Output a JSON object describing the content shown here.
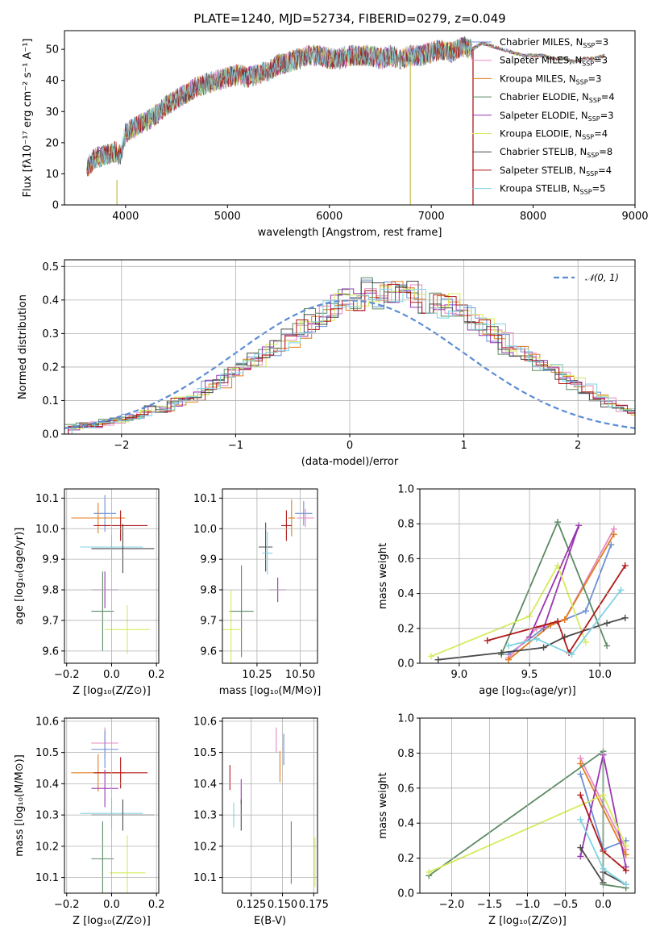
{
  "title": "PLATE=1240, MJD=52734, FIBERID=0279, z=0.049",
  "chart_data": [
    {
      "id": "spectrum",
      "type": "line",
      "xlabel": "wavelength [Angstrom, rest frame]",
      "ylabel": "Flux [fλ10⁻¹⁷ erg cm⁻² s⁻¹ A⁻¹]",
      "xlim": [
        3400,
        9000
      ],
      "ylim": [
        0,
        56
      ],
      "xticks": [
        "4000",
        "5000",
        "6000",
        "7000",
        "8000",
        "9000"
      ],
      "yticks": [
        "0",
        "10",
        "20",
        "30",
        "40",
        "50"
      ],
      "legend_position": "top-right",
      "continuum": {
        "x": [
          3620,
          3700,
          3800,
          3900,
          3950,
          4000,
          4100,
          4200,
          4300,
          4400,
          4500,
          4600,
          4700,
          4800,
          4900,
          5000,
          5100,
          5200,
          5300,
          5400,
          5500,
          5600,
          5700,
          5800,
          5900,
          6000,
          6100,
          6200,
          6300,
          6400,
          6500,
          6600,
          6700,
          6800,
          6900,
          7000,
          7100,
          7200,
          7300,
          7400
        ],
        "y": [
          12,
          15,
          16,
          17,
          16,
          23,
          25,
          27,
          29,
          32,
          34,
          36,
          38,
          39,
          40,
          41,
          42,
          41,
          42,
          43,
          45,
          46,
          47,
          48,
          48,
          47,
          47,
          48,
          48,
          48,
          47,
          48,
          47,
          48,
          48,
          49,
          50,
          49,
          51,
          50
        ]
      },
      "models_extension": {
        "x": [
          7400,
          7500,
          7600,
          7700,
          7800,
          7900,
          8000,
          8100,
          8200,
          8300,
          8400,
          8500,
          8600,
          8700
        ],
        "y": [
          50,
          52,
          51,
          50,
          49,
          48,
          48,
          48,
          47,
          47,
          46,
          47,
          47,
          48
        ]
      },
      "series": [
        {
          "name": "Chabrier MILES",
          "nssp": "3",
          "color": "#6b8fd6"
        },
        {
          "name": "Salpeter MILES",
          "nssp": "3",
          "color": "#e889c0"
        },
        {
          "name": "Kroupa MILES",
          "nssp": "3",
          "color": "#e17c1f"
        },
        {
          "name": "Chabrier ELODIE",
          "nssp": "4",
          "color": "#5b8a62"
        },
        {
          "name": "Salpeter ELODIE",
          "nssp": "3",
          "color": "#9a35b0"
        },
        {
          "name": "Kroupa ELODIE",
          "nssp": "4",
          "color": "#d5ec5a"
        },
        {
          "name": "Chabrier STELIB",
          "nssp": "8",
          "color": "#4a4a4a"
        },
        {
          "name": "Salpeter STELIB",
          "nssp": "4",
          "color": "#b01818"
        },
        {
          "name": "Kroupa STELIB",
          "nssp": "5",
          "color": "#7fd3e3"
        }
      ],
      "spikes": [
        {
          "x": 3915,
          "y_from": 0,
          "y_to": 8,
          "color": "#c9c25a"
        },
        {
          "x": 6795,
          "y_from": 0,
          "y_to": 46,
          "color": "#c9c25a"
        },
        {
          "x": 7410,
          "y_from": 0,
          "y_to": 50,
          "color": "#b01818"
        }
      ]
    },
    {
      "id": "residuals",
      "type": "histogram",
      "xlabel": "(data-model)/error",
      "ylabel": "Normed distribution",
      "xlim": [
        -2.5,
        2.5
      ],
      "ylim": [
        0,
        0.52
      ],
      "xticks": [
        "−2",
        "−1",
        "0",
        "1",
        "2"
      ],
      "yticks": [
        "0.0",
        "0.1",
        "0.2",
        "0.3",
        "0.4",
        "0.5"
      ],
      "grid": true,
      "legend": "𝒩(0, 1)",
      "legend_position": "top-right",
      "normal_color": "#5b8bd6",
      "bin_width": 0.1,
      "bin_start": -2.5,
      "profile": [
        0.02,
        0.025,
        0.03,
        0.035,
        0.04,
        0.05,
        0.06,
        0.07,
        0.08,
        0.095,
        0.11,
        0.12,
        0.14,
        0.16,
        0.18,
        0.2,
        0.22,
        0.24,
        0.26,
        0.29,
        0.31,
        0.34,
        0.36,
        0.38,
        0.4,
        0.41,
        0.42,
        0.42,
        0.42,
        0.41,
        0.41,
        0.4,
        0.39,
        0.38,
        0.36,
        0.34,
        0.32,
        0.3,
        0.27,
        0.25,
        0.23,
        0.21,
        0.19,
        0.17,
        0.15,
        0.13,
        0.11,
        0.09,
        0.08,
        0.07,
        0.06,
        0.05,
        0.045,
        0.04,
        0.035,
        0.03,
        0.028,
        0.025,
        0.025,
        0.025,
        0.025,
        0.025,
        0.025,
        0.025,
        0.025,
        0.025,
        0.025,
        0.025,
        0.025,
        0.025,
        0.025
      ]
    },
    {
      "id": "age-vs-z",
      "type": "errorbar",
      "xlabel": "Z [log₁₀(Z/Z⊙)]",
      "ylabel": "age  [log₁₀(age/yr)]",
      "xlim": [
        -0.21,
        0.21
      ],
      "ylim": [
        9.56,
        10.13
      ],
      "xticks": [
        {
          "v": -0.2,
          "t": "−0.2"
        },
        {
          "v": 0.0,
          "t": "0.0"
        },
        {
          "v": 0.2,
          "t": "0.2"
        }
      ],
      "yticks": [
        {
          "v": 9.6,
          "t": "9.6"
        },
        {
          "v": 9.7,
          "t": "9.7"
        },
        {
          "v": 9.8,
          "t": "9.8"
        },
        {
          "v": 9.9,
          "t": "9.9"
        },
        {
          "v": 10.0,
          "t": "10.0"
        },
        {
          "v": 10.1,
          "t": "10.1"
        }
      ],
      "points": [
        {
          "x": -0.03,
          "xerr": 0.05,
          "y": 10.05,
          "yerr": 0.06,
          "color": "#6b8fd6"
        },
        {
          "x": -0.06,
          "xerr": 0.12,
          "y": 10.035,
          "yerr": 0.05,
          "color": "#e17c1f"
        },
        {
          "x": 0.04,
          "xerr": 0.12,
          "y": 10.01,
          "yerr": 0.05,
          "color": "#b01818"
        },
        {
          "x": 0.0,
          "xerr": 0.14,
          "y": 9.94,
          "yerr": 0.04,
          "color": "#7fd3e3"
        },
        {
          "x": 0.05,
          "xerr": 0.14,
          "y": 9.935,
          "yerr": 0.08,
          "color": "#4a4a4a"
        },
        {
          "x": -0.03,
          "xerr": 0.06,
          "y": 9.8,
          "yerr": 0.06,
          "color": "#9a35b0"
        },
        {
          "x": -0.04,
          "xerr": 0.05,
          "y": 9.73,
          "yerr": 0.13,
          "color": "#5b8a62"
        },
        {
          "x": 0.07,
          "xerr": 0.1,
          "y": 9.67,
          "yerr": 0.08,
          "color": "#d5ec5a"
        }
      ]
    },
    {
      "id": "age-vs-mass",
      "type": "errorbar",
      "xlabel": "mass [log₁₀(M/M⊙)]",
      "ylabel": "",
      "xlim": [
        10.05,
        10.6
      ],
      "ylim": [
        9.56,
        10.13
      ],
      "xticks": [
        {
          "v": 10.25,
          "t": "10.25"
        },
        {
          "v": 10.5,
          "t": "10.50"
        }
      ],
      "yticks": [
        {
          "v": 9.6,
          "t": "9.6"
        },
        {
          "v": 9.7,
          "t": "9.7"
        },
        {
          "v": 9.8,
          "t": "9.8"
        },
        {
          "v": 9.9,
          "t": "9.9"
        },
        {
          "v": 10.0,
          "t": "10.0"
        },
        {
          "v": 10.1,
          "t": "10.1"
        }
      ],
      "points": [
        {
          "x": 10.52,
          "xerr": 0.05,
          "y": 10.05,
          "yerr": 0.04,
          "color": "#6b8fd6"
        },
        {
          "x": 10.53,
          "xerr": 0.05,
          "y": 10.035,
          "yerr": 0.03,
          "color": "#e889c0"
        },
        {
          "x": 10.45,
          "xerr": 0.02,
          "y": 10.035,
          "yerr": 0.06,
          "color": "#e17c1f"
        },
        {
          "x": 10.42,
          "xerr": 0.03,
          "y": 10.01,
          "yerr": 0.05,
          "color": "#b01818"
        },
        {
          "x": 10.3,
          "xerr": 0.04,
          "y": 9.94,
          "yerr": 0.08,
          "color": "#4a4a4a"
        },
        {
          "x": 10.31,
          "xerr": 0.03,
          "y": 9.92,
          "yerr": 0.07,
          "color": "#7fd3e3"
        },
        {
          "x": 10.37,
          "xerr": 0.05,
          "y": 9.8,
          "yerr": 0.04,
          "color": "#9a35b0"
        },
        {
          "x": 10.16,
          "xerr": 0.07,
          "y": 9.73,
          "yerr": 0.15,
          "color": "#5b8a62"
        },
        {
          "x": 10.1,
          "xerr": 0.06,
          "y": 9.67,
          "yerr": 0.13,
          "color": "#d5ec5a"
        }
      ]
    },
    {
      "id": "weight-vs-age",
      "type": "line",
      "xlabel": "age  [log₁₀(age/yr)]",
      "ylabel": "mass weight",
      "xlim": [
        8.72,
        10.25
      ],
      "ylim": [
        0,
        1.0
      ],
      "grid": true,
      "xticks": [
        {
          "v": 9.0,
          "t": "9.0"
        },
        {
          "v": 9.5,
          "t": "9.5"
        },
        {
          "v": 10.0,
          "t": "10.0"
        }
      ],
      "yticks": [
        {
          "v": 0,
          "t": "0.0"
        },
        {
          "v": 0.2,
          "t": "0.2"
        },
        {
          "v": 0.4,
          "t": "0.4"
        },
        {
          "v": 0.6,
          "t": "0.6"
        },
        {
          "v": 0.8,
          "t": "0.8"
        },
        {
          "v": 1.0,
          "t": "1.0"
        }
      ],
      "series": [
        {
          "color": "#6b8fd6",
          "x": [
            9.35,
            9.6,
            9.9,
            10.08
          ],
          "y": [
            0.05,
            0.2,
            0.3,
            0.68
          ]
        },
        {
          "color": "#e889c0",
          "x": [
            9.35,
            9.55,
            9.75,
            10.1
          ],
          "y": [
            0.03,
            0.2,
            0.25,
            0.77
          ]
        },
        {
          "color": "#e17c1f",
          "x": [
            9.35,
            9.65,
            9.75,
            10.1
          ],
          "y": [
            0.02,
            0.22,
            0.25,
            0.74
          ]
        },
        {
          "color": "#5b8a62",
          "x": [
            9.3,
            9.7,
            10.05
          ],
          "y": [
            0.05,
            0.81,
            0.1
          ]
        },
        {
          "color": "#9a35b0",
          "x": [
            9.5,
            9.85,
            9.6
          ],
          "y": [
            0.15,
            0.79,
            0.2
          ]
        },
        {
          "color": "#d5ec5a",
          "x": [
            8.8,
            9.5,
            9.7,
            9.9
          ],
          "y": [
            0.04,
            0.27,
            0.56,
            0.12
          ]
        },
        {
          "color": "#4a4a4a",
          "x": [
            8.85,
            9.3,
            9.6,
            9.75,
            10.05,
            10.18
          ],
          "y": [
            0.02,
            0.06,
            0.09,
            0.15,
            0.23,
            0.26
          ]
        },
        {
          "color": "#b01818",
          "x": [
            9.2,
            9.7,
            9.78,
            10.18
          ],
          "y": [
            0.13,
            0.24,
            0.06,
            0.56
          ]
        },
        {
          "color": "#7fd3e3",
          "x": [
            9.35,
            9.55,
            9.8,
            10.15
          ],
          "y": [
            0.1,
            0.14,
            0.05,
            0.42
          ]
        }
      ]
    },
    {
      "id": "mass-vs-z",
      "type": "errorbar",
      "xlabel": "Z [log₁₀(Z/Z⊙)]",
      "ylabel": "mass [log₁₀(M/M⊙)]",
      "xlim": [
        -0.21,
        0.21
      ],
      "ylim": [
        10.05,
        10.61
      ],
      "xticks": [
        {
          "v": -0.2,
          "t": "−0.2"
        },
        {
          "v": 0.0,
          "t": "0.0"
        },
        {
          "v": 0.2,
          "t": "0.2"
        }
      ],
      "yticks": [
        {
          "v": 10.1,
          "t": "10.1"
        },
        {
          "v": 10.2,
          "t": "10.2"
        },
        {
          "v": 10.3,
          "t": "10.3"
        },
        {
          "v": 10.4,
          "t": "10.4"
        },
        {
          "v": 10.5,
          "t": "10.5"
        },
        {
          "v": 10.6,
          "t": "10.6"
        }
      ],
      "points": [
        {
          "x": -0.03,
          "xerr": 0.06,
          "y": 10.53,
          "yerr": 0.05,
          "color": "#e889c0"
        },
        {
          "x": -0.03,
          "xerr": 0.06,
          "y": 10.51,
          "yerr": 0.06,
          "color": "#6b8fd6"
        },
        {
          "x": -0.06,
          "xerr": 0.12,
          "y": 10.435,
          "yerr": 0.06,
          "color": "#e17c1f"
        },
        {
          "x": 0.04,
          "xerr": 0.12,
          "y": 10.435,
          "yerr": 0.05,
          "color": "#b01818"
        },
        {
          "x": -0.03,
          "xerr": 0.06,
          "y": 10.385,
          "yerr": 0.06,
          "color": "#9a35b0"
        },
        {
          "x": 0.0,
          "xerr": 0.14,
          "y": 10.305,
          "yerr": 0.05,
          "color": "#7fd3e3"
        },
        {
          "x": 0.05,
          "xerr": 0.14,
          "y": 10.3,
          "yerr": 0.05,
          "color": "#4a4a4a"
        },
        {
          "x": -0.04,
          "xerr": 0.05,
          "y": 10.16,
          "yerr": 0.12,
          "color": "#5b8a62"
        },
        {
          "x": 0.07,
          "xerr": 0.08,
          "y": 10.115,
          "yerr": 0.12,
          "color": "#d5ec5a"
        }
      ]
    },
    {
      "id": "mass-vs-ebv",
      "type": "errorbar",
      "xlabel": "E(B-V)",
      "ylabel": "",
      "xlim": [
        0.102,
        0.178
      ],
      "ylim": [
        10.05,
        10.61
      ],
      "xticks": [
        {
          "v": 0.125,
          "t": "0.125"
        },
        {
          "v": 0.15,
          "t": "0.150"
        },
        {
          "v": 0.175,
          "t": "0.175"
        }
      ],
      "yticks": [
        {
          "v": 10.1,
          "t": "10.1"
        },
        {
          "v": 10.2,
          "t": "10.2"
        },
        {
          "v": 10.3,
          "t": "10.3"
        },
        {
          "v": 10.4,
          "t": "10.4"
        },
        {
          "v": 10.5,
          "t": "10.5"
        },
        {
          "v": 10.6,
          "t": "10.6"
        }
      ],
      "points": [
        {
          "x": 0.145,
          "xerr": 0,
          "y": 10.54,
          "yerr": 0.04,
          "color": "#e889c0"
        },
        {
          "x": 0.151,
          "xerr": 0,
          "y": 10.51,
          "yerr": 0.05,
          "color": "#6b8fd6"
        },
        {
          "x": 0.148,
          "xerr": 0,
          "y": 10.455,
          "yerr": 0.05,
          "color": "#e17c1f"
        },
        {
          "x": 0.108,
          "xerr": 0,
          "y": 10.42,
          "yerr": 0.04,
          "color": "#b01818"
        },
        {
          "x": 0.117,
          "xerr": 0,
          "y": 10.375,
          "yerr": 0.04,
          "color": "#9a35b0"
        },
        {
          "x": 0.117,
          "xerr": 0,
          "y": 10.3,
          "yerr": 0.05,
          "color": "#4a4a4a"
        },
        {
          "x": 0.111,
          "xerr": 0,
          "y": 10.3,
          "yerr": 0.04,
          "color": "#7fd3e3"
        },
        {
          "x": 0.157,
          "xerr": 0,
          "y": 10.18,
          "yerr": 0.1,
          "color": "#5b8a62"
        },
        {
          "x": 0.176,
          "xerr": 0,
          "y": 10.15,
          "yerr": 0.08,
          "color": "#d5ec5a"
        }
      ]
    },
    {
      "id": "weight-vs-z",
      "type": "line",
      "xlabel": "Z [log₁₀(Z/Z⊙)]",
      "ylabel": "mass weight",
      "xlim": [
        -2.42,
        0.42
      ],
      "ylim": [
        0,
        1.0
      ],
      "grid": true,
      "xticks": [
        {
          "v": -2.0,
          "t": "−2.0"
        },
        {
          "v": -1.5,
          "t": "−1.5"
        },
        {
          "v": -1.0,
          "t": "−1.0"
        },
        {
          "v": -0.5,
          "t": "−0.5"
        },
        {
          "v": 0.0,
          "t": "0.0"
        }
      ],
      "yticks": [
        {
          "v": 0,
          "t": "0.0"
        },
        {
          "v": 0.2,
          "t": "0.2"
        },
        {
          "v": 0.4,
          "t": "0.4"
        },
        {
          "v": 0.6,
          "t": "0.6"
        },
        {
          "v": 0.8,
          "t": "0.8"
        },
        {
          "v": 1.0,
          "t": "1.0"
        }
      ],
      "series": [
        {
          "color": "#6b8fd6",
          "x": [
            -0.3,
            0.0,
            0.3
          ],
          "y": [
            0.68,
            0.25,
            0.3
          ]
        },
        {
          "color": "#e889c0",
          "x": [
            -0.3,
            0.3
          ],
          "y": [
            0.77,
            0.25
          ]
        },
        {
          "color": "#e17c1f",
          "x": [
            -0.3,
            0.3
          ],
          "y": [
            0.74,
            0.22
          ]
        },
        {
          "color": "#5b8a62",
          "x": [
            -2.3,
            0.0,
            0.0,
            0.3
          ],
          "y": [
            0.1,
            0.81,
            0.05,
            0.03
          ]
        },
        {
          "color": "#9a35b0",
          "x": [
            -0.3,
            0.0,
            0.3
          ],
          "y": [
            0.21,
            0.79,
            0.15
          ]
        },
        {
          "color": "#d5ec5a",
          "x": [
            -2.3,
            0.0,
            0.3
          ],
          "y": [
            0.12,
            0.56,
            0.27
          ]
        },
        {
          "color": "#4a4a4a",
          "x": [
            -0.3,
            0.0,
            0.0,
            0.3
          ],
          "y": [
            0.26,
            0.06,
            0.12,
            0.05
          ]
        },
        {
          "color": "#b01818",
          "x": [
            -0.3,
            0.0,
            0.3
          ],
          "y": [
            0.56,
            0.24,
            0.13
          ]
        },
        {
          "color": "#7fd3e3",
          "x": [
            -0.3,
            0.0,
            0.3
          ],
          "y": [
            0.42,
            0.14,
            0.05
          ]
        }
      ]
    }
  ]
}
